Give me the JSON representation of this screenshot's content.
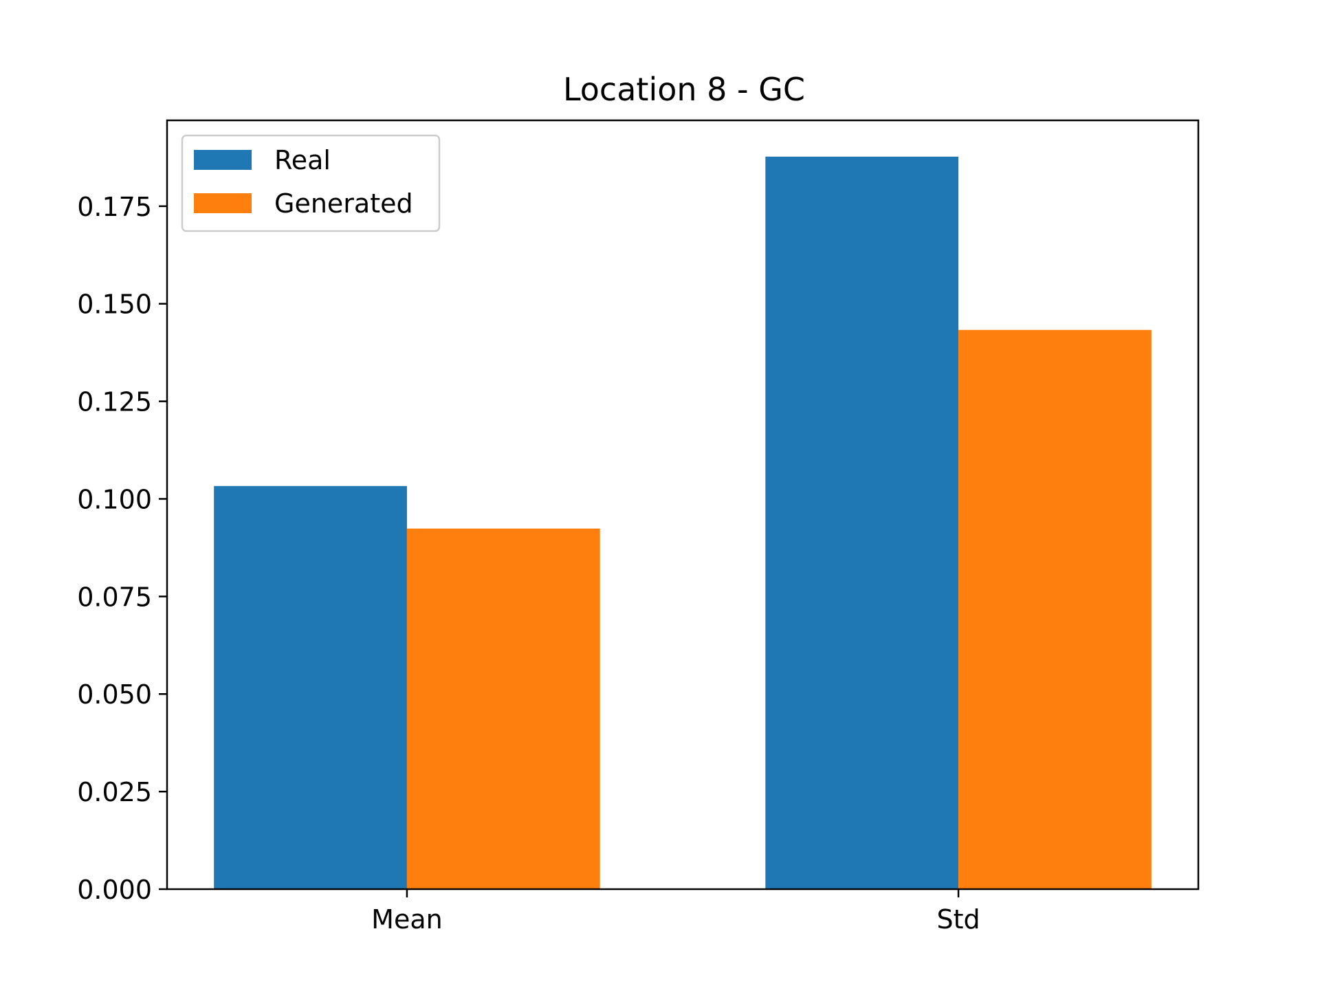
{
  "chart_data": {
    "type": "bar",
    "title": "Location 8 - GC",
    "xlabel": "",
    "ylabel": "",
    "categories": [
      "Mean",
      "Std"
    ],
    "series": [
      {
        "name": "Real",
        "color": "#1f77b4",
        "values": [
          0.1033,
          0.1877
        ]
      },
      {
        "name": "Generated",
        "color": "#ff7f0e",
        "values": [
          0.0924,
          0.1433
        ]
      }
    ],
    "ylim": [
      0,
      0.197
    ],
    "yticks": [
      0.0,
      0.025,
      0.05,
      0.075,
      0.1,
      0.125,
      0.15,
      0.175
    ],
    "ytick_labels": [
      "0.000",
      "0.025",
      "0.050",
      "0.075",
      "0.100",
      "0.125",
      "0.150",
      "0.175"
    ],
    "grid": false,
    "legend": "top-left"
  }
}
